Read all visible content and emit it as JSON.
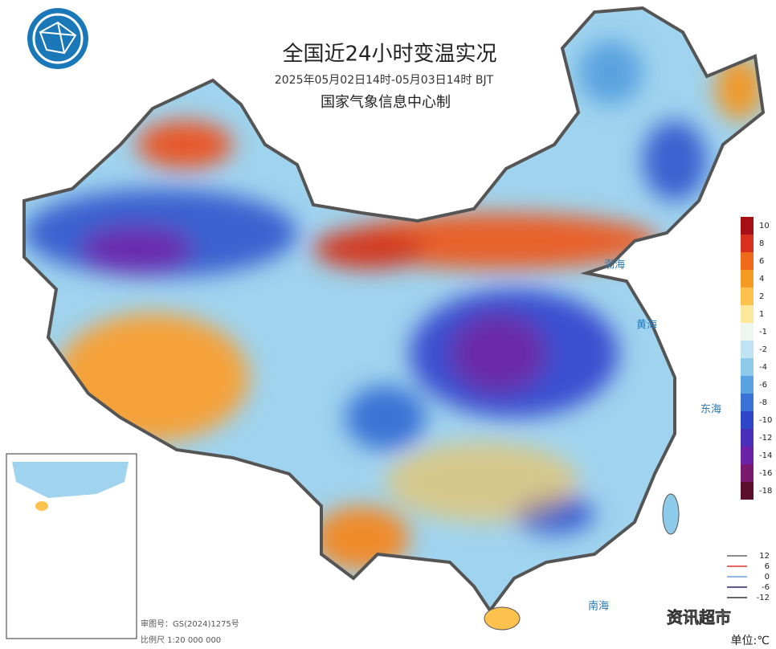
{
  "header": {
    "title": "全国近24小时变温实况",
    "subtitle": "2025年05月02日14时-05月03日14时 BJT",
    "producer": "国家气象信息中心制"
  },
  "sea_labels": [
    "渤海",
    "黄海",
    "东海",
    "南海"
  ],
  "color_scale": [
    {
      "value": 10,
      "color": "#a50f15"
    },
    {
      "value": 8,
      "color": "#d7301f"
    },
    {
      "value": 6,
      "color": "#ef6a1a"
    },
    {
      "value": 4,
      "color": "#f59a23"
    },
    {
      "value": 2,
      "color": "#fcc24d"
    },
    {
      "value": 1,
      "color": "#fde79a"
    },
    {
      "value": -1,
      "color": "#eef6f0"
    },
    {
      "value": -2,
      "color": "#bfe3f2"
    },
    {
      "value": -4,
      "color": "#8ecbea"
    },
    {
      "value": -6,
      "color": "#5aa3e0"
    },
    {
      "value": -8,
      "color": "#3a72d6"
    },
    {
      "value": -10,
      "color": "#2f46c9"
    },
    {
      "value": -12,
      "color": "#4a2fb8"
    },
    {
      "value": -14,
      "color": "#6b22a8"
    },
    {
      "value": -16,
      "color": "#7a1a6e"
    },
    {
      "value": -18,
      "color": "#5a0f2a"
    }
  ],
  "isoline_legend": [
    {
      "value": 12,
      "color": "#666666"
    },
    {
      "value": 6,
      "color": "#e03030"
    },
    {
      "value": 0,
      "color": "#6aa0d8"
    },
    {
      "value": -6,
      "color": "#222266"
    },
    {
      "value": -12,
      "color": "#333333"
    }
  ],
  "unit": "单位:℃",
  "footer": {
    "map_number": "审图号：GS(2024)1275号",
    "scale": "比例尺 1:20 000 000"
  },
  "watermark": "资讯超市"
}
